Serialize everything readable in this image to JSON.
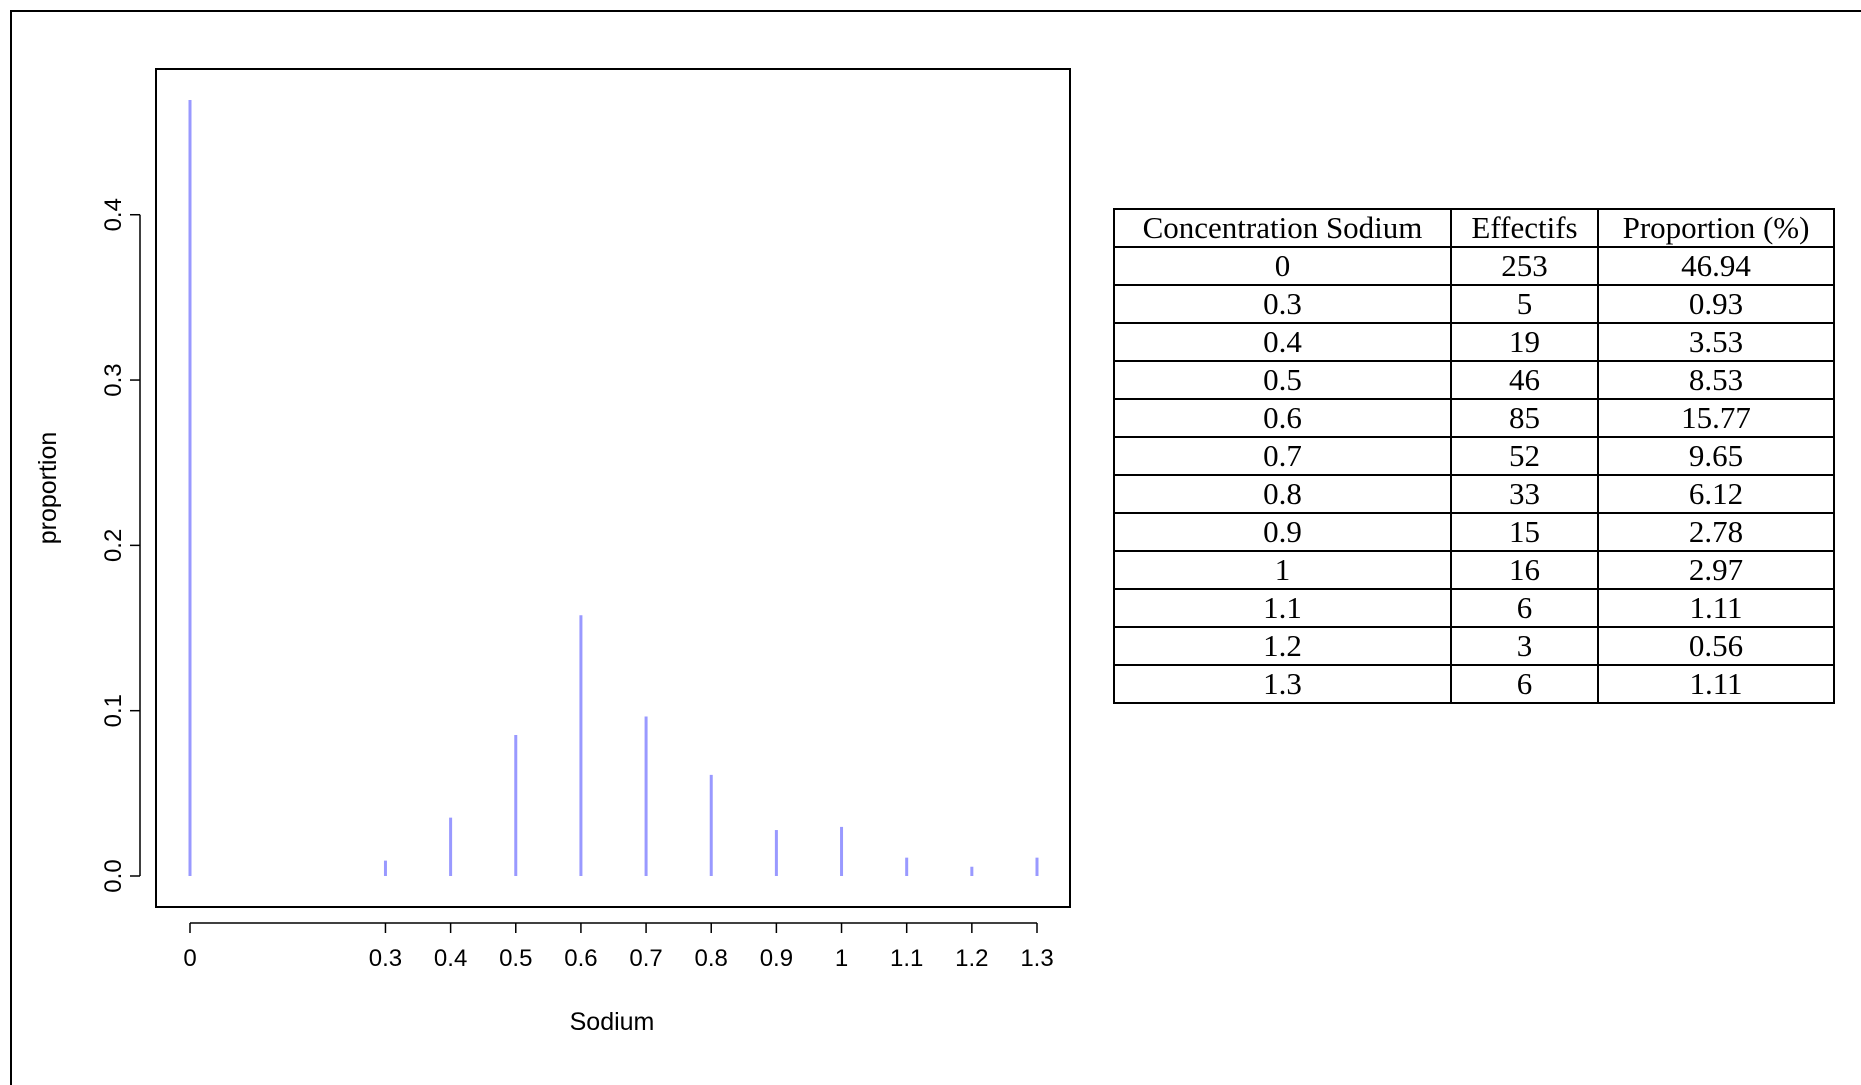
{
  "chart_data": {
    "type": "bar",
    "xlabel": "Sodium",
    "ylabel": "proportion",
    "x": [
      0,
      0.3,
      0.4,
      0.5,
      0.6,
      0.7,
      0.8,
      0.9,
      1,
      1.1,
      1.2,
      1.3
    ],
    "x_tick_labels": [
      "0",
      "0.3",
      "0.4",
      "0.5",
      "0.6",
      "0.7",
      "0.8",
      "0.9",
      "1",
      "1.1",
      "1.2",
      "1.3"
    ],
    "values": [
      0.4694,
      0.0093,
      0.0353,
      0.0853,
      0.1577,
      0.0965,
      0.0612,
      0.0278,
      0.0297,
      0.0111,
      0.0056,
      0.0111
    ],
    "y_ticks": [
      0.0,
      0.1,
      0.2,
      0.3,
      0.4
    ],
    "y_tick_labels": [
      "0.0",
      "0.1",
      "0.2",
      "0.3",
      "0.4"
    ],
    "ylim": [
      0,
      0.4694
    ],
    "xlim": [
      0,
      1.3
    ],
    "bar_color": "#9999ff",
    "grid": false
  },
  "table": {
    "headers": [
      "Concentration Sodium",
      "Effectifs",
      "Proportion (%)"
    ],
    "rows": [
      [
        "0",
        "253",
        "46.94"
      ],
      [
        "0.3",
        "5",
        "0.93"
      ],
      [
        "0.4",
        "19",
        "3.53"
      ],
      [
        "0.5",
        "46",
        "8.53"
      ],
      [
        "0.6",
        "85",
        "15.77"
      ],
      [
        "0.7",
        "52",
        "9.65"
      ],
      [
        "0.8",
        "33",
        "6.12"
      ],
      [
        "0.9",
        "15",
        "2.78"
      ],
      [
        "1",
        "16",
        "2.97"
      ],
      [
        "1.1",
        "6",
        "1.11"
      ],
      [
        "1.2",
        "3",
        "0.56"
      ],
      [
        "1.3",
        "6",
        "1.11"
      ]
    ]
  }
}
